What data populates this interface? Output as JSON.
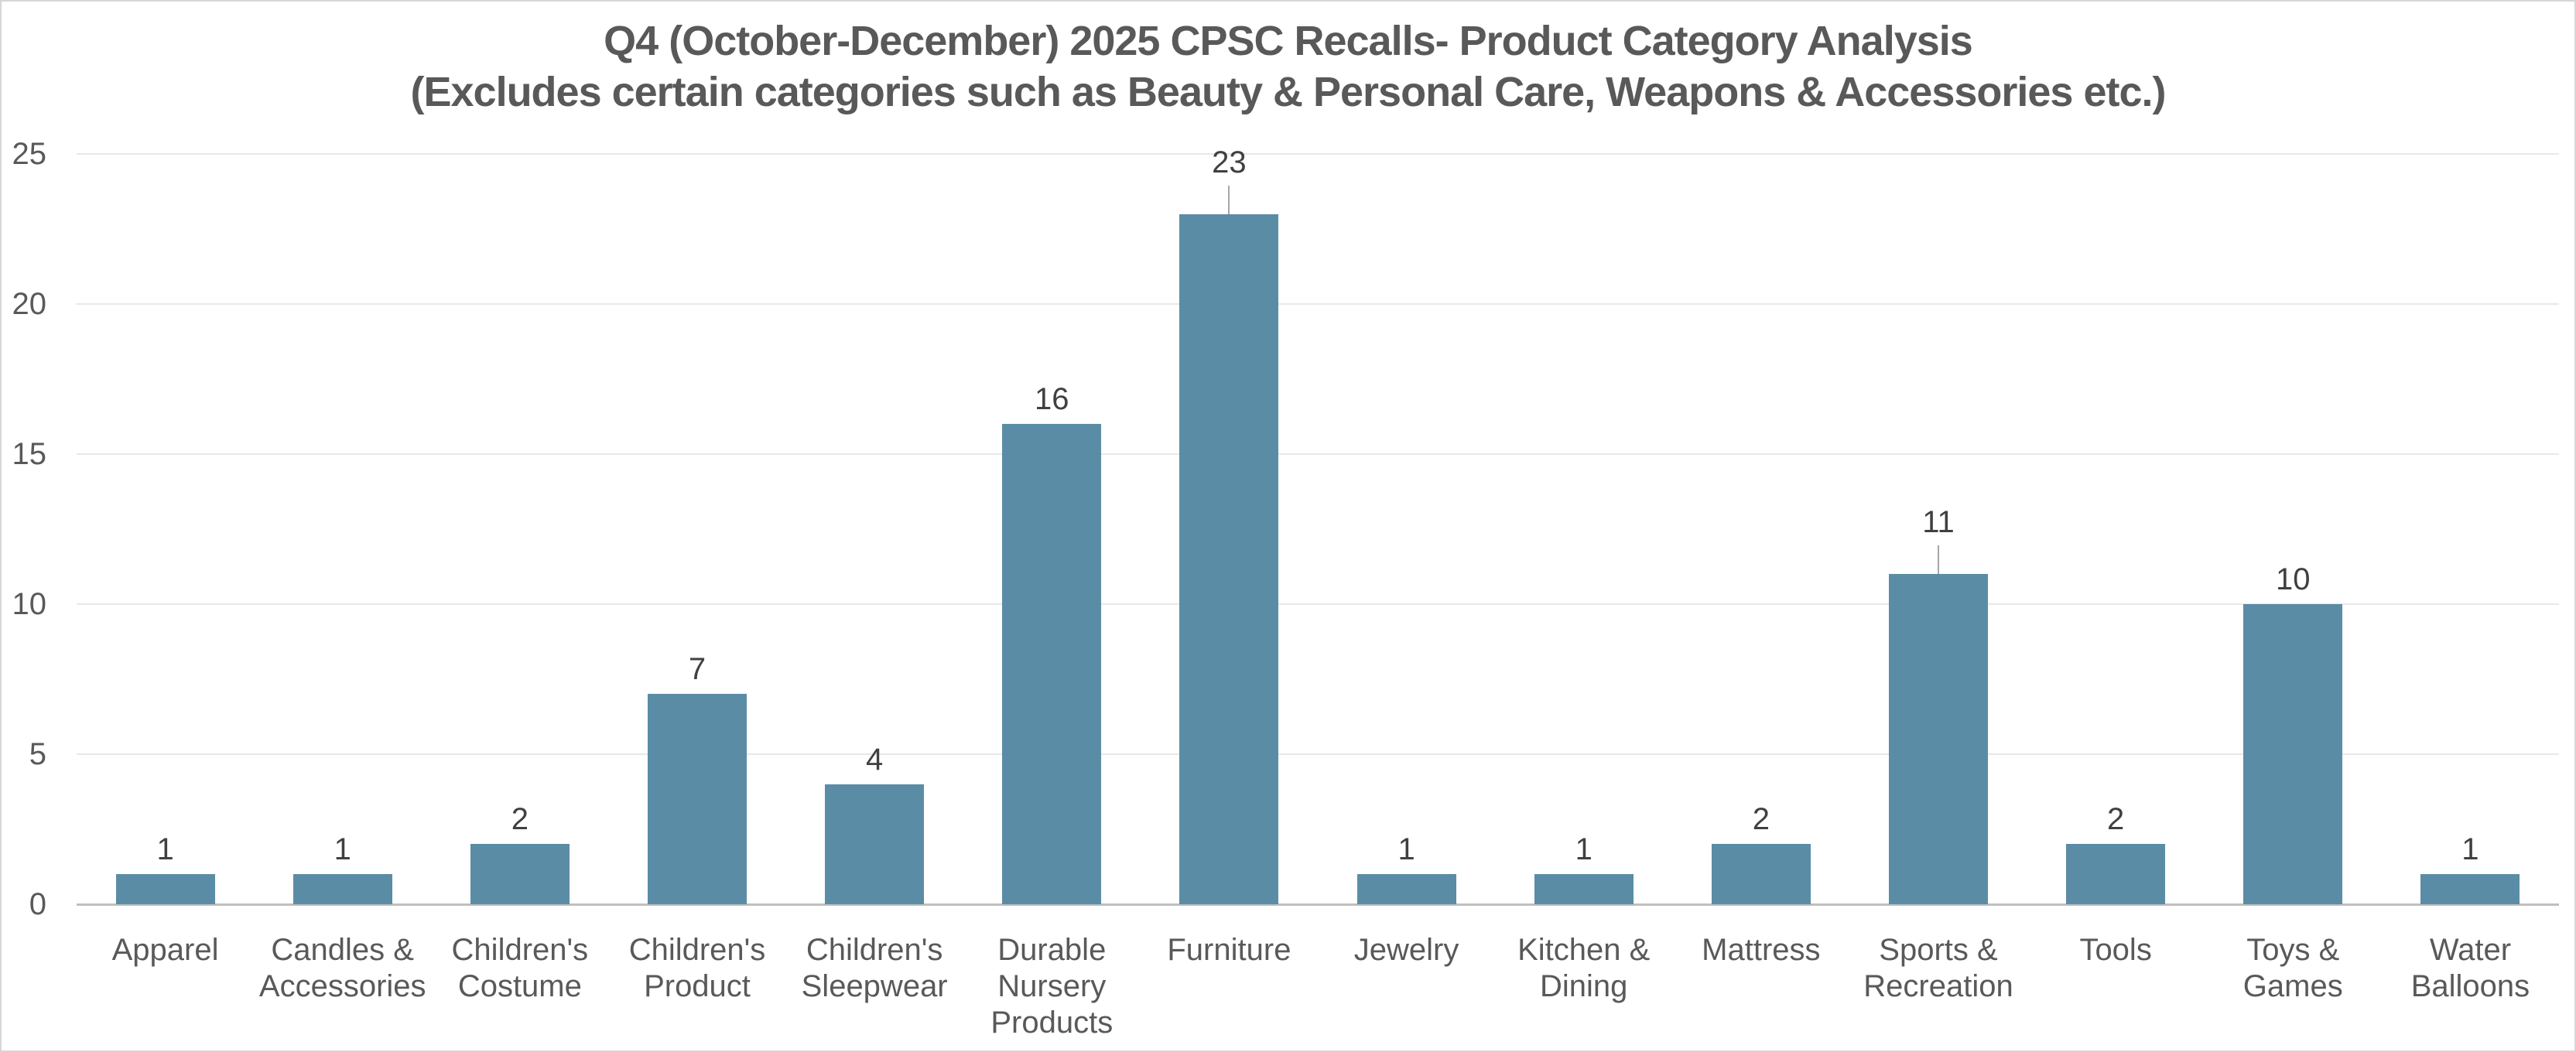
{
  "chart_data": {
    "type": "bar",
    "title": "Q4 (October-December) 2025 CPSC Recalls- Product Category Analysis",
    "subtitle": "(Excludes certain categories such as Beauty & Personal Care, Weapons & Accessories etc.)",
    "categories": [
      "Apparel",
      "Candles & Accessories",
      "Children's Costume",
      "Children's Product",
      "Children's Sleepwear",
      "Durable Nursery Products",
      "Furniture",
      "Jewelry",
      "Kitchen & Dining",
      "Mattress",
      "Sports & Recreation",
      "Tools",
      "Toys & Games",
      "Water Balloons"
    ],
    "category_labels_wrapped": [
      "Apparel",
      "Candles &\nAccessories",
      "Children's\nCostume",
      "Children's\nProduct",
      "Children's\nSleepwear",
      "Durable\nNursery\nProducts",
      "Furniture",
      "Jewelry",
      "Kitchen &\nDining",
      "Mattress",
      "Sports &\nRecreation",
      "Tools",
      "Toys &\nGames",
      "Water\nBalloons"
    ],
    "values": [
      1,
      1,
      2,
      7,
      4,
      16,
      23,
      1,
      1,
      2,
      11,
      2,
      10,
      1
    ],
    "data_labels_shown": true,
    "labels_with_leader_lines": [
      "Furniture",
      "Sports & Recreation"
    ],
    "ylim": [
      0,
      25
    ],
    "yticks": [
      0,
      5,
      10,
      15,
      20,
      25
    ],
    "xlabel": "",
    "ylabel": "",
    "grid": true,
    "legend": false,
    "colors": {
      "bar": "#5A8CA6",
      "title_text": "#595959",
      "axis_text": "#595959",
      "data_label_text": "#404040",
      "gridline": "#E8E8E8",
      "axis_line": "#BFBFBF",
      "leader_line": "#A6A6A6",
      "chart_border": "#D6D6D6",
      "background": "#FFFFFF"
    }
  }
}
